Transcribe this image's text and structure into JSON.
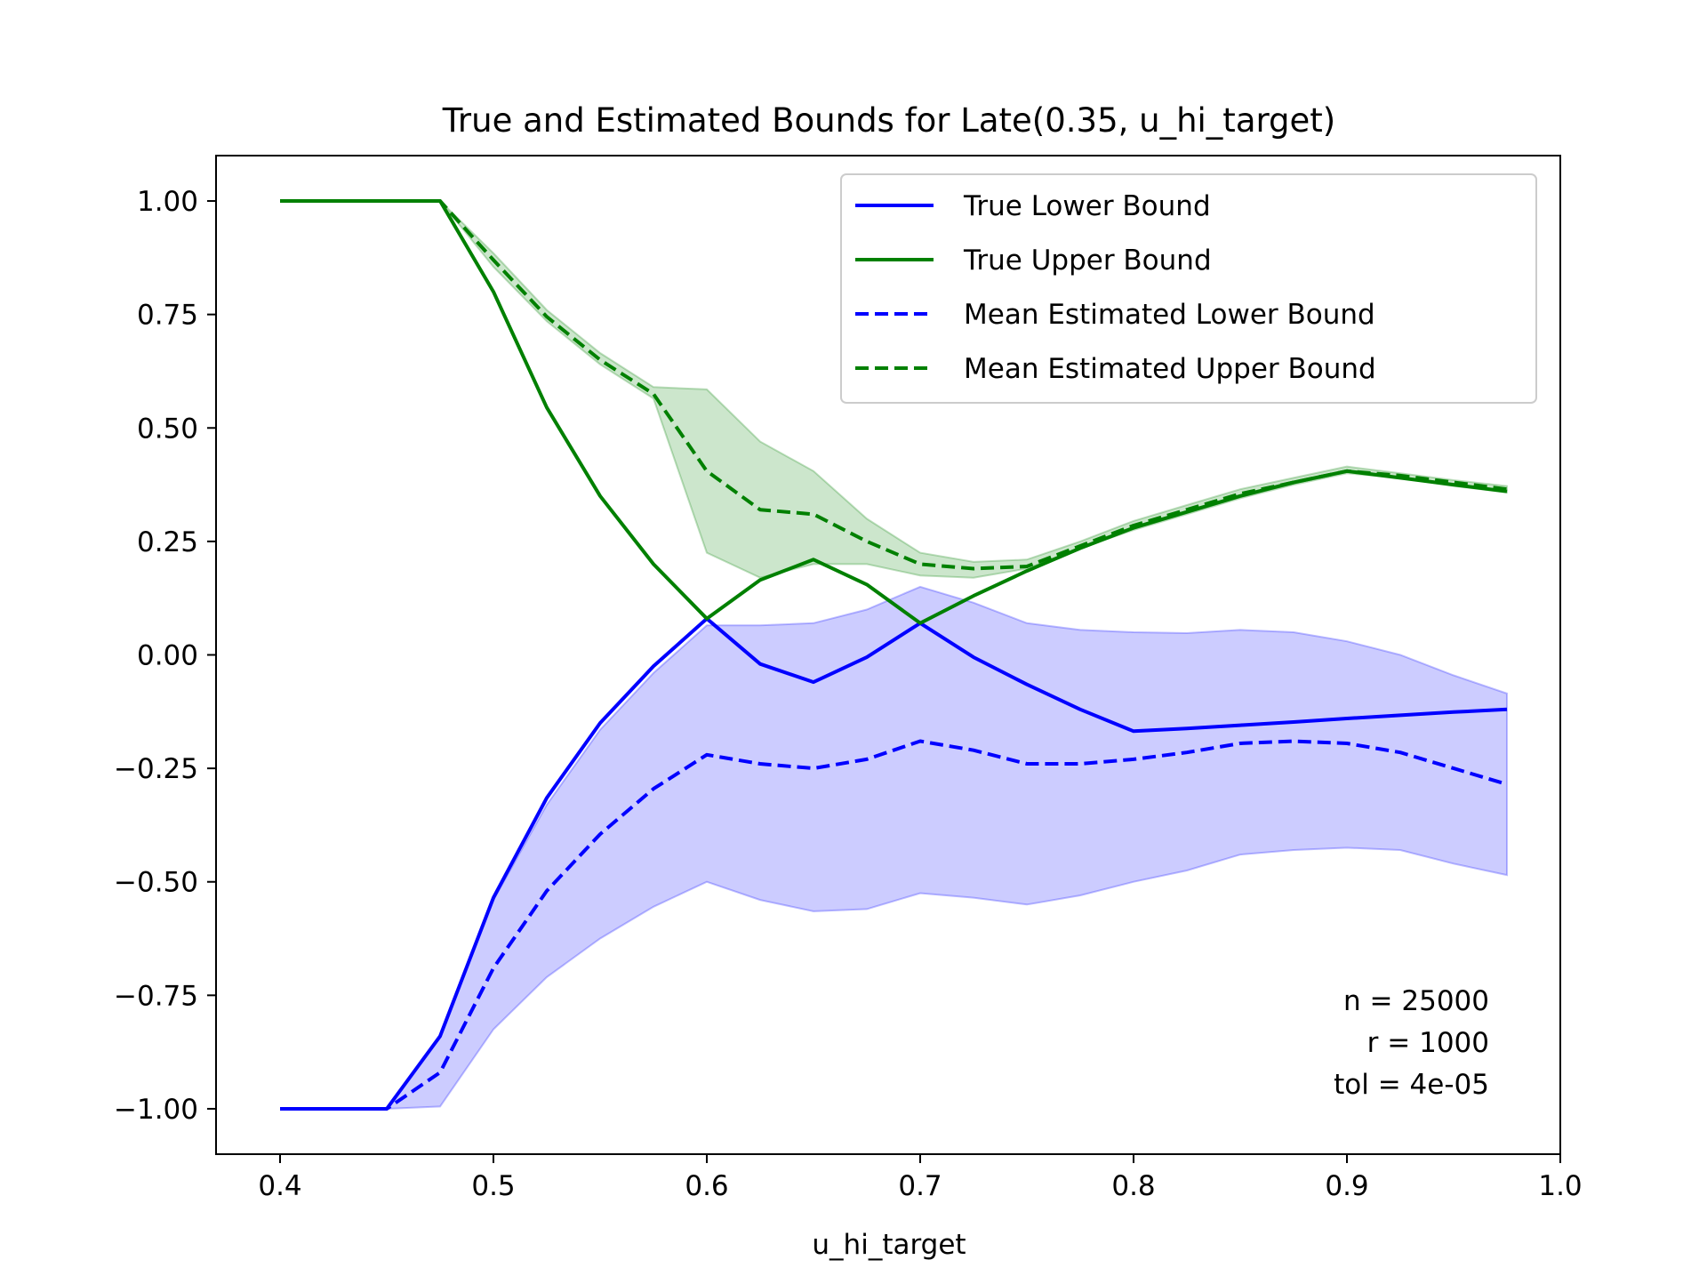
{
  "chart_data": {
    "type": "line",
    "title": "True and Estimated Bounds for Late(0.35, u_hi_target)",
    "xlabel": "u_hi_target",
    "ylabel": "",
    "xlim": [
      0.37,
      1.0
    ],
    "ylim": [
      -1.1,
      1.1
    ],
    "xticks": [
      0.4,
      0.5,
      0.6,
      0.7,
      0.8,
      0.9,
      1.0
    ],
    "xtick_labels": [
      "0.4",
      "0.5",
      "0.6",
      "0.7",
      "0.8",
      "0.9",
      "1.0"
    ],
    "yticks": [
      1.0,
      0.75,
      0.5,
      0.25,
      0.0,
      -0.25,
      -0.5,
      -0.75,
      -1.0
    ],
    "ytick_labels": [
      "1.00",
      "0.75",
      "0.50",
      "0.25",
      "0.00",
      "−0.25",
      "−0.50",
      "−0.75",
      "−1.00"
    ],
    "grid": false,
    "legend_position": "top-right",
    "x": [
      0.4,
      0.425,
      0.45,
      0.475,
      0.5,
      0.525,
      0.55,
      0.575,
      0.6,
      0.625,
      0.65,
      0.675,
      0.7,
      0.725,
      0.75,
      0.775,
      0.8,
      0.825,
      0.85,
      0.875,
      0.9,
      0.925,
      0.95,
      0.975
    ],
    "series": [
      {
        "name": "True Lower Bound",
        "style": "solid",
        "color": "#0000ff",
        "values": [
          -1.0,
          -1.0,
          -1.0,
          -0.84,
          -0.535,
          -0.315,
          -0.15,
          -0.025,
          0.08,
          -0.02,
          -0.06,
          -0.005,
          0.07,
          -0.005,
          -0.065,
          -0.12,
          -0.168,
          -0.162,
          -0.155,
          -0.148,
          -0.14,
          -0.133,
          -0.126,
          -0.12
        ]
      },
      {
        "name": "True Upper Bound",
        "style": "solid",
        "color": "#008000",
        "values": [
          1.0,
          1.0,
          1.0,
          1.0,
          0.8,
          0.545,
          0.35,
          0.2,
          0.08,
          0.165,
          0.21,
          0.155,
          0.07,
          0.13,
          0.185,
          0.235,
          0.28,
          0.315,
          0.35,
          0.38,
          0.405,
          0.39,
          0.375,
          0.36
        ]
      },
      {
        "name": "Mean Estimated Lower Bound",
        "style": "dashed",
        "color": "#0000ff",
        "values": [
          -1.0,
          -1.0,
          -1.0,
          -0.92,
          -0.69,
          -0.52,
          -0.395,
          -0.295,
          -0.22,
          -0.24,
          -0.25,
          -0.23,
          -0.19,
          -0.21,
          -0.24,
          -0.24,
          -0.23,
          -0.215,
          -0.195,
          -0.19,
          -0.195,
          -0.215,
          -0.25,
          -0.285
        ]
      },
      {
        "name": "Mean Estimated Upper Bound",
        "style": "dashed",
        "color": "#008000",
        "values": [
          1.0,
          1.0,
          1.0,
          1.0,
          0.87,
          0.745,
          0.65,
          0.575,
          0.405,
          0.32,
          0.31,
          0.25,
          0.2,
          0.19,
          0.195,
          0.24,
          0.285,
          0.32,
          0.355,
          0.38,
          0.405,
          0.395,
          0.38,
          0.365
        ]
      }
    ],
    "bands": [
      {
        "color": "#0000ff",
        "opacity": 0.2,
        "lower": [
          -1.0,
          -1.0,
          -1.0,
          -0.995,
          -0.825,
          -0.71,
          -0.625,
          -0.555,
          -0.5,
          -0.54,
          -0.565,
          -0.56,
          -0.525,
          -0.535,
          -0.55,
          -0.53,
          -0.5,
          -0.475,
          -0.44,
          -0.43,
          -0.425,
          -0.43,
          -0.46,
          -0.485
        ],
        "upper": [
          -1.0,
          -1.0,
          -1.0,
          -0.84,
          -0.54,
          -0.33,
          -0.165,
          -0.04,
          0.065,
          0.065,
          0.07,
          0.1,
          0.15,
          0.115,
          0.07,
          0.055,
          0.05,
          0.048,
          0.055,
          0.05,
          0.03,
          0.0,
          -0.045,
          -0.085
        ]
      },
      {
        "color": "#008000",
        "opacity": 0.2,
        "lower": [
          1.0,
          1.0,
          1.0,
          1.0,
          0.855,
          0.735,
          0.64,
          0.565,
          0.225,
          0.17,
          0.2,
          0.2,
          0.175,
          0.17,
          0.19,
          0.235,
          0.275,
          0.31,
          0.345,
          0.375,
          0.4,
          0.39,
          0.372,
          0.358
        ],
        "upper": [
          1.0,
          1.0,
          1.0,
          1.0,
          0.885,
          0.76,
          0.665,
          0.59,
          0.585,
          0.47,
          0.405,
          0.3,
          0.225,
          0.205,
          0.21,
          0.25,
          0.295,
          0.33,
          0.365,
          0.39,
          0.415,
          0.4,
          0.385,
          0.372
        ]
      }
    ],
    "annotations": [
      "n = 25000",
      "r = 1000",
      "tol = 4e-05"
    ]
  }
}
